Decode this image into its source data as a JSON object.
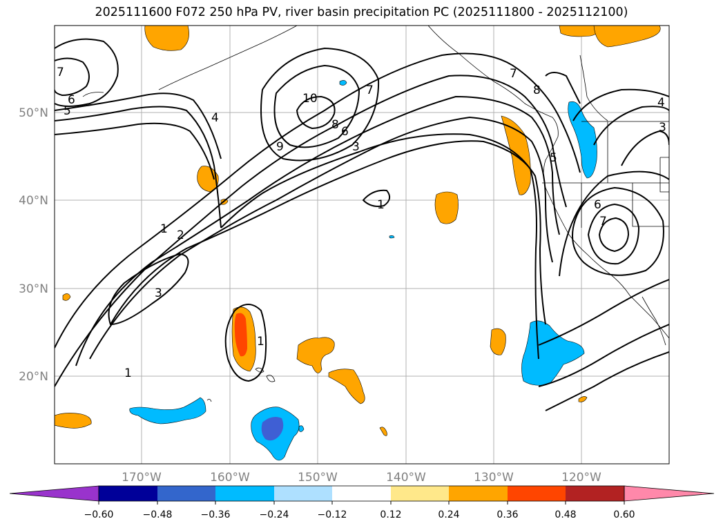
{
  "title": "2025111600 F072 250 hPa PV, river basin precipitation PC (2025111800 - 2025112100)",
  "map": {
    "lat_labels": [
      "50°N",
      "40°N",
      "30°N",
      "20°N"
    ],
    "lon_labels": [
      "170°W",
      "160°W",
      "150°W",
      "140°W",
      "130°W",
      "120°W"
    ],
    "contour_labels": [
      "1",
      "1",
      "1",
      "1",
      "2",
      "3",
      "3",
      "3",
      "4",
      "4",
      "5",
      "5",
      "6",
      "6",
      "6",
      "7",
      "7",
      "7",
      "7",
      "8",
      "8",
      "9",
      "10"
    ]
  },
  "colorbar": {
    "ticks": [
      "−0.60",
      "−0.48",
      "−0.36",
      "−0.24",
      "−0.12",
      "0.12",
      "0.24",
      "0.36",
      "0.48",
      "0.60"
    ],
    "colors": [
      "#9933cc",
      "#000099",
      "#3366cc",
      "#00bbff",
      "#aee0ff",
      "#ffffff",
      "#ffe88a",
      "#ffa500",
      "#ff4500",
      "#b22222",
      "#ff88aa"
    ]
  }
}
